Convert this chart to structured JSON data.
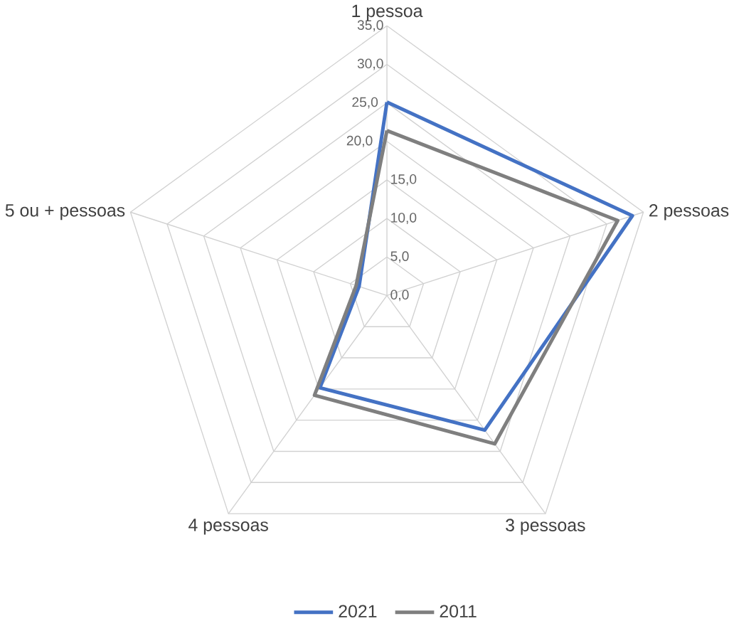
{
  "chart_data": {
    "type": "radar",
    "categories": [
      "1 pessoa",
      "2 pessoas",
      "3 pessoas",
      "4 pessoas",
      "5 ou + pessoas"
    ],
    "series": [
      {
        "name": "2021",
        "color": "#4472c4",
        "values": [
          25.1,
          33.5,
          21.6,
          14.8,
          3.8
        ]
      },
      {
        "name": "2011",
        "color": "#7f7f7f",
        "values": [
          21.4,
          31.5,
          23.8,
          16.0,
          4.2
        ]
      }
    ],
    "ylim": [
      0,
      35
    ],
    "yticks": [
      {
        "value": 0,
        "label": "0,0"
      },
      {
        "value": 5,
        "label": "5,0"
      },
      {
        "value": 10,
        "label": "10,0"
      },
      {
        "value": 15,
        "label": "15,0"
      },
      {
        "value": 20,
        "label": "20,0"
      },
      {
        "value": 25,
        "label": "25,0"
      },
      {
        "value": 30,
        "label": "30,0"
      },
      {
        "value": 35,
        "label": "35,0"
      }
    ],
    "grid": true,
    "legend": "bottom"
  }
}
